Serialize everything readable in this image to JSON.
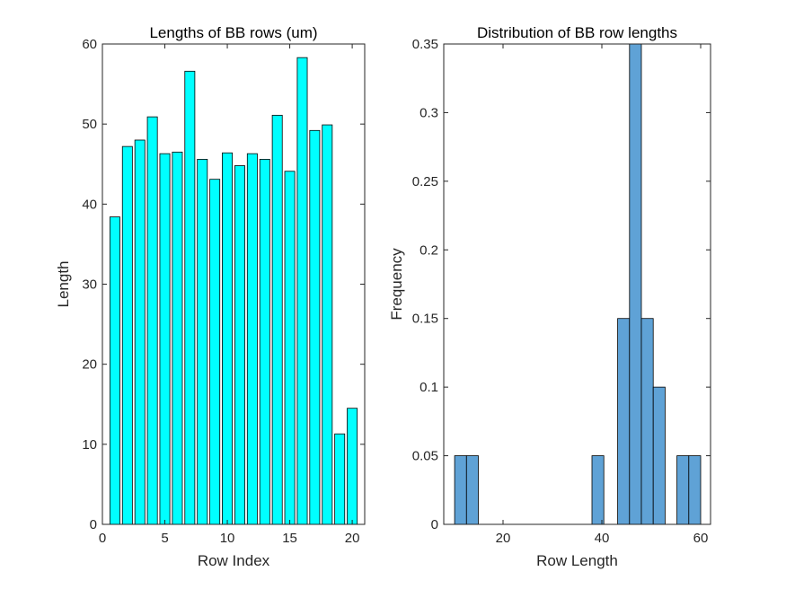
{
  "chart_data": [
    {
      "type": "bar",
      "title": "Lengths of BB rows (um)",
      "xlabel": "Row Index",
      "ylabel": "Length",
      "xlim": [
        0,
        21
      ],
      "ylim": [
        0,
        60
      ],
      "xticks": [
        "0",
        "5",
        "10",
        "15",
        "20"
      ],
      "yticks": [
        "0",
        "10",
        "20",
        "30",
        "40",
        "50",
        "60"
      ],
      "bar_color": "#00ffff",
      "x": [
        1,
        2,
        3,
        4,
        5,
        6,
        7,
        8,
        9,
        10,
        11,
        12,
        13,
        14,
        15,
        16,
        17,
        18,
        19,
        20
      ],
      "values": [
        38.4,
        47.2,
        48.0,
        50.9,
        46.3,
        46.5,
        56.6,
        45.6,
        43.1,
        46.4,
        44.8,
        46.3,
        45.6,
        51.1,
        44.1,
        58.3,
        49.2,
        49.9,
        11.3,
        14.5
      ],
      "grid": false
    },
    {
      "type": "bar",
      "subtype": "histogram",
      "title": "Distribution of BB row lengths",
      "xlabel": "Row Length",
      "ylabel": "Frequency",
      "xlim": [
        8,
        62
      ],
      "ylim": [
        0,
        0.35
      ],
      "xticks": [
        "20",
        "40",
        "60"
      ],
      "yticks": [
        "0",
        "0.05",
        "0.1",
        "0.15",
        "0.2",
        "0.25",
        "0.3",
        "0.35"
      ],
      "bar_color": "#5fa2d6",
      "bin_width": 2.4,
      "bin_starts": [
        10.2,
        12.6,
        38.0,
        43.2,
        45.6,
        48.0,
        50.4,
        55.2,
        57.6
      ],
      "values": [
        0.05,
        0.05,
        0.05,
        0.15,
        0.35,
        0.15,
        0.1,
        0.05,
        0.05
      ],
      "grid": false
    }
  ]
}
